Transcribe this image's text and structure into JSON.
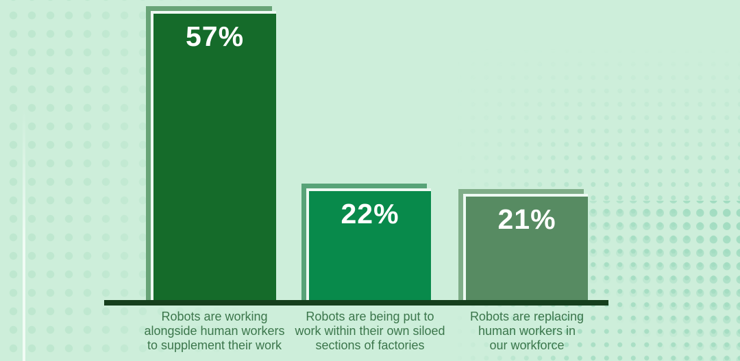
{
  "chart_data": {
    "type": "bar",
    "title": "",
    "xlabel": "",
    "ylabel": "",
    "unit": "%",
    "categories": [
      "Robots are working\nalongside human workers\nto supplement their work",
      "Robots are being put to\nwork within their own siloed\nsections of factories",
      "Robots are replacing\nhuman workers in\nour workforce"
    ],
    "values": [
      57,
      22,
      21
    ],
    "value_labels": [
      "57%",
      "22%",
      "21%"
    ],
    "bar_colors": [
      "#156b2a",
      "#088a4b",
      "#578b62"
    ],
    "shadow_colors": [
      "#68a477",
      "#58a378",
      "#7fad88"
    ],
    "legend": "none",
    "grid": false,
    "y_axis_visible": false,
    "baseline_visible": true
  },
  "palette": {
    "background": "#cdeeda",
    "dots_left": "#bee7cf",
    "dots_right": "#aadfc5",
    "axis": "#163f1d",
    "bar_inner_border": "#edf9f2",
    "category_text": "#3b764b",
    "value_text": "#ffffff"
  }
}
